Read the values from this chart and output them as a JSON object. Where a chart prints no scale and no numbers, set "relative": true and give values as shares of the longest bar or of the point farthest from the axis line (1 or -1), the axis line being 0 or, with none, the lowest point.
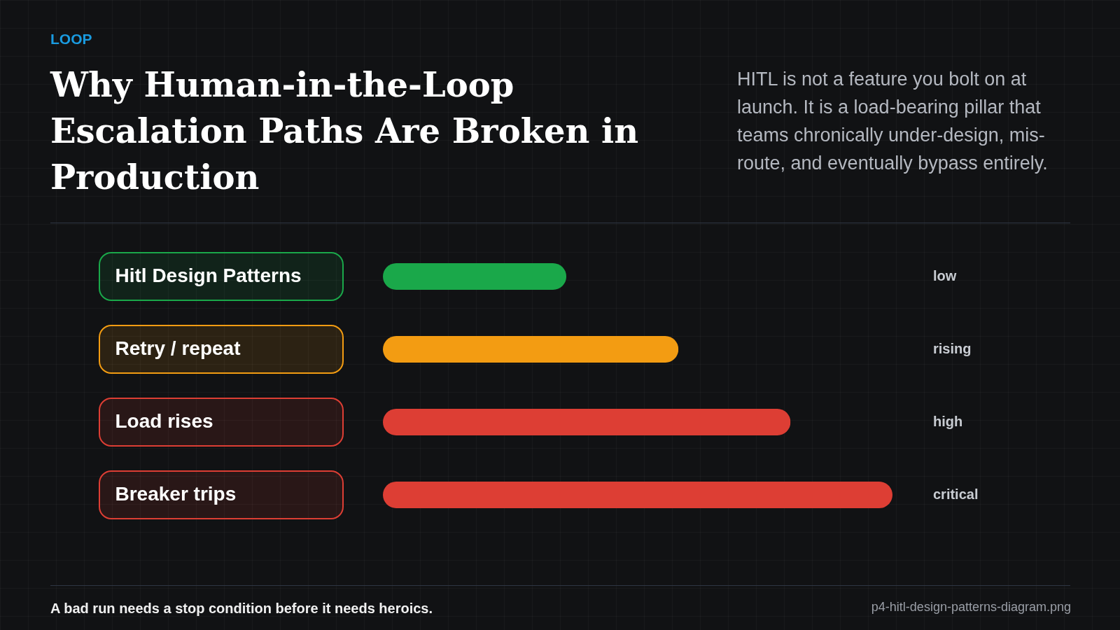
{
  "chart_data": {
    "type": "bar",
    "orientation": "horizontal",
    "relative": true,
    "title": "Why Human-in-the-Loop Escalation Paths Are Broken in Production",
    "subtitle": "HITL is not a feature you bolt on at launch. It is a load-bearing pillar that teams chronically under-design, mis-route, and eventually bypass entirely.",
    "categories": [
      "Hitl Design Patterns",
      "Retry / repeat",
      "Load rises",
      "Breaker trips"
    ],
    "values": [
      0.36,
      0.58,
      0.8,
      1
    ],
    "colors": [
      "#1aa84a",
      "#f39c12",
      "#dd3e34",
      "#dd3e34"
    ],
    "annotations": [
      "LOOP",
      "A bad run needs a stop condition before it needs heroics.",
      "p4-hitl-design-patterns-diagram.png",
      "low",
      "rising",
      "high",
      "critical"
    ]
  }
}
